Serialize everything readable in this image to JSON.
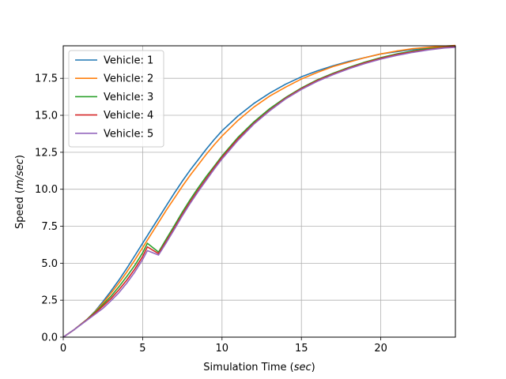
{
  "chart_data": {
    "type": "line",
    "title": "",
    "xlabel": "Simulation Time (sec)",
    "xlabel_main": "Simulation Time (",
    "xlabel_unit": "sec",
    "xlabel_close": ")",
    "ylabel": "Speed (m/sec)",
    "ylabel_main": "Speed (",
    "ylabel_unit": "m/sec",
    "ylabel_close": ")",
    "xlim": [
      0,
      24.7
    ],
    "ylim": [
      0,
      19.7
    ],
    "xticks": [
      0,
      5,
      10,
      15,
      20
    ],
    "xtick_labels": [
      "0",
      "5",
      "10",
      "15",
      "20"
    ],
    "yticks": [
      0,
      2.5,
      5,
      7.5,
      10,
      12.5,
      15,
      17.5
    ],
    "ytick_labels": [
      "0.0",
      "2.5",
      "5.0",
      "7.5",
      "10.0",
      "12.5",
      "15.0",
      "17.5"
    ],
    "grid": true,
    "legend_position": "top-left",
    "series": [
      {
        "name": "Vehicle: 1",
        "color": "#1f77b4",
        "x": [
          0,
          0.7,
          1.5,
          2.0,
          2.5,
          3.0,
          3.5,
          4.0,
          4.5,
          5.0,
          5.5,
          6.0,
          6.5,
          7.0,
          7.5,
          8.0,
          8.5,
          9.0,
          9.5,
          10.0,
          11.0,
          12.0,
          13.0,
          14.0,
          15.0,
          16.0,
          17.0,
          18.0,
          19.0,
          20.0,
          21.0,
          22.0,
          23.0,
          24.0,
          24.7
        ],
        "y": [
          0,
          0.52,
          1.2,
          1.75,
          2.4,
          3.1,
          3.85,
          4.65,
          5.5,
          6.35,
          7.2,
          8.05,
          8.9,
          9.75,
          10.55,
          11.3,
          12.0,
          12.7,
          13.35,
          13.95,
          14.95,
          15.8,
          16.5,
          17.1,
          17.6,
          18.0,
          18.35,
          18.65,
          18.9,
          19.15,
          19.3,
          19.45,
          19.55,
          19.65,
          19.7
        ]
      },
      {
        "name": "Vehicle: 2",
        "color": "#ff7f0e",
        "x": [
          0,
          0.7,
          1.5,
          2.0,
          2.5,
          3.0,
          3.5,
          4.0,
          4.5,
          5.0,
          5.5,
          6.0,
          6.5,
          7.0,
          7.5,
          8.0,
          8.5,
          9.0,
          9.5,
          10.0,
          11.0,
          12.0,
          13.0,
          14.0,
          15.0,
          16.0,
          17.0,
          18.0,
          19.0,
          20.0,
          21.0,
          22.0,
          23.0,
          24.0,
          24.7
        ],
        "y": [
          0,
          0.52,
          1.2,
          1.72,
          2.3,
          2.95,
          3.65,
          4.4,
          5.2,
          6.05,
          6.9,
          7.75,
          8.6,
          9.4,
          10.2,
          10.95,
          11.65,
          12.35,
          13.0,
          13.6,
          14.65,
          15.55,
          16.3,
          16.9,
          17.45,
          17.9,
          18.3,
          18.6,
          18.9,
          19.15,
          19.35,
          19.5,
          19.6,
          19.68,
          19.72
        ]
      },
      {
        "name": "Vehicle: 3",
        "color": "#2ca02c",
        "x": [
          0,
          0.7,
          1.5,
          2.0,
          2.5,
          3.0,
          3.5,
          4.0,
          4.5,
          5.0,
          5.3,
          6.0,
          6.5,
          7.0,
          7.5,
          8.0,
          8.5,
          9.0,
          9.5,
          10.0,
          11.0,
          12.0,
          13.0,
          14.0,
          15.0,
          16.0,
          17.0,
          18.0,
          19.0,
          20.0,
          21.0,
          22.0,
          23.0,
          24.0,
          24.7
        ],
        "y": [
          0,
          0.52,
          1.2,
          1.68,
          2.2,
          2.75,
          3.4,
          4.1,
          4.85,
          5.7,
          6.35,
          5.75,
          6.65,
          7.55,
          8.45,
          9.3,
          10.1,
          10.85,
          11.55,
          12.25,
          13.5,
          14.55,
          15.45,
          16.2,
          16.85,
          17.4,
          17.85,
          18.25,
          18.6,
          18.9,
          19.15,
          19.35,
          19.5,
          19.6,
          19.65
        ]
      },
      {
        "name": "Vehicle: 4",
        "color": "#d62728",
        "x": [
          0,
          0.7,
          1.5,
          2.0,
          2.5,
          3.0,
          3.5,
          4.0,
          4.5,
          5.0,
          5.3,
          6.0,
          6.5,
          7.0,
          7.5,
          8.0,
          8.5,
          9.0,
          9.5,
          10.0,
          11.0,
          12.0,
          13.0,
          14.0,
          15.0,
          16.0,
          17.0,
          18.0,
          19.0,
          20.0,
          21.0,
          22.0,
          23.0,
          24.0,
          24.7
        ],
        "y": [
          0,
          0.52,
          1.18,
          1.62,
          2.1,
          2.6,
          3.2,
          3.85,
          4.6,
          5.45,
          6.1,
          5.65,
          6.5,
          7.4,
          8.3,
          9.15,
          9.95,
          10.7,
          11.45,
          12.15,
          13.4,
          14.45,
          15.35,
          16.15,
          16.8,
          17.35,
          17.8,
          18.2,
          18.55,
          18.85,
          19.1,
          19.3,
          19.45,
          19.58,
          19.63
        ]
      },
      {
        "name": "Vehicle: 5",
        "color": "#9467bd",
        "x": [
          0,
          0.7,
          1.5,
          2.0,
          2.5,
          3.0,
          3.5,
          4.0,
          4.5,
          5.0,
          5.3,
          6.0,
          6.5,
          7.0,
          7.5,
          8.0,
          8.5,
          9.0,
          9.5,
          10.0,
          11.0,
          12.0,
          13.0,
          14.0,
          15.0,
          16.0,
          17.0,
          18.0,
          19.0,
          20.0,
          21.0,
          22.0,
          23.0,
          24.0,
          24.7
        ],
        "y": [
          0,
          0.52,
          1.15,
          1.55,
          1.95,
          2.45,
          3.0,
          3.65,
          4.4,
          5.25,
          5.85,
          5.55,
          6.4,
          7.3,
          8.2,
          9.05,
          9.85,
          10.6,
          11.35,
          12.05,
          13.3,
          14.4,
          15.3,
          16.1,
          16.75,
          17.3,
          17.75,
          18.15,
          18.5,
          18.8,
          19.05,
          19.25,
          19.42,
          19.55,
          19.6
        ]
      }
    ]
  }
}
